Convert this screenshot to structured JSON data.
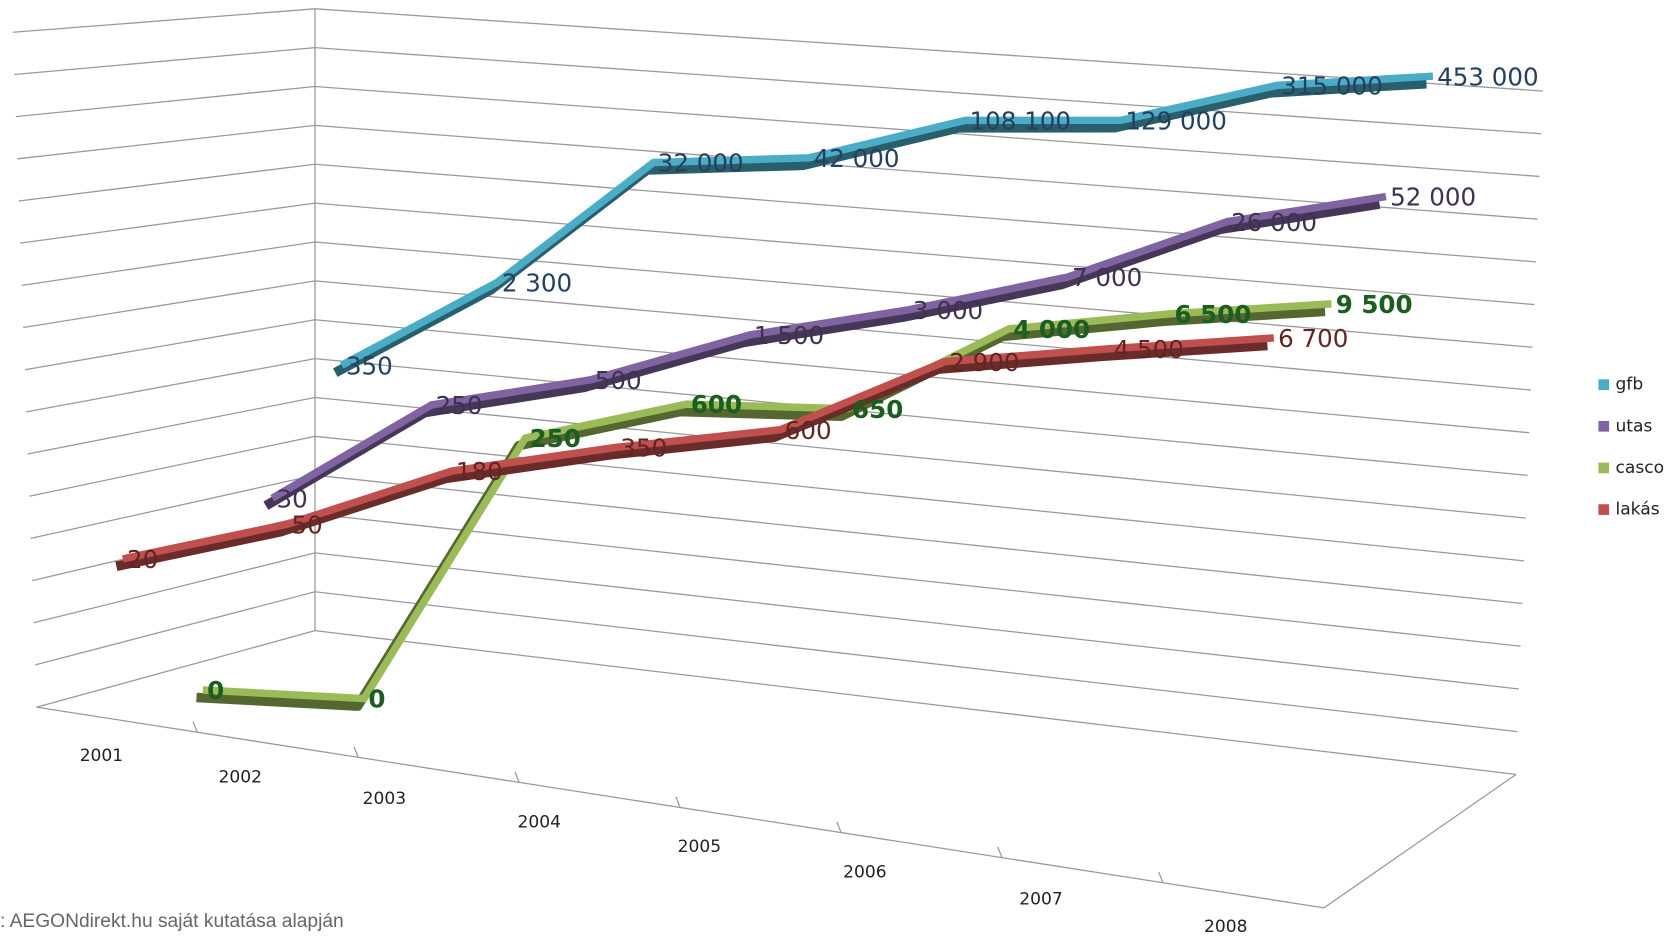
{
  "chart_data": {
    "type": "line3d",
    "categories": [
      "2001",
      "2002",
      "2003",
      "2004",
      "2005",
      "2006",
      "2007",
      "2008"
    ],
    "log_scale": true,
    "legend": "right",
    "source": ": AEGONdirekt.hu saját kutatása alapján",
    "series": [
      {
        "name": "gfb",
        "color": "#4bacc6",
        "label_color": "#243f60",
        "values": [
          350,
          2300,
          32000,
          42000,
          108100,
          129000,
          315000,
          453000
        ],
        "value_labels": [
          "350",
          "2 300",
          "32 000",
          "42 000",
          "108 100",
          "129 000",
          "315 000",
          "453 000"
        ]
      },
      {
        "name": "utas",
        "color": "#8064a2",
        "label_color": "#3f3151",
        "values": [
          30,
          250,
          500,
          1500,
          3000,
          7000,
          26000,
          52000
        ],
        "value_labels": [
          "30",
          "250",
          "500",
          "1 500",
          "3 000",
          "7 000",
          "26 000",
          "52 000"
        ]
      },
      {
        "name": "casco",
        "color": "#9bbb59",
        "label_color": "#1b5e20",
        "values": [
          0,
          0,
          250,
          600,
          650,
          4000,
          6500,
          9500
        ],
        "value_labels": [
          "0",
          "0",
          "250",
          "600",
          "650",
          "4 000",
          "6 500",
          "9 500"
        ]
      },
      {
        "name": "lakás",
        "color": "#c0504d",
        "label_color": "#632523",
        "values": [
          20,
          50,
          180,
          350,
          600,
          2900,
          4500,
          6700
        ],
        "value_labels": [
          "20",
          "50",
          "180",
          "350",
          "600",
          "2 900",
          "4 500",
          "6 700"
        ]
      }
    ]
  }
}
